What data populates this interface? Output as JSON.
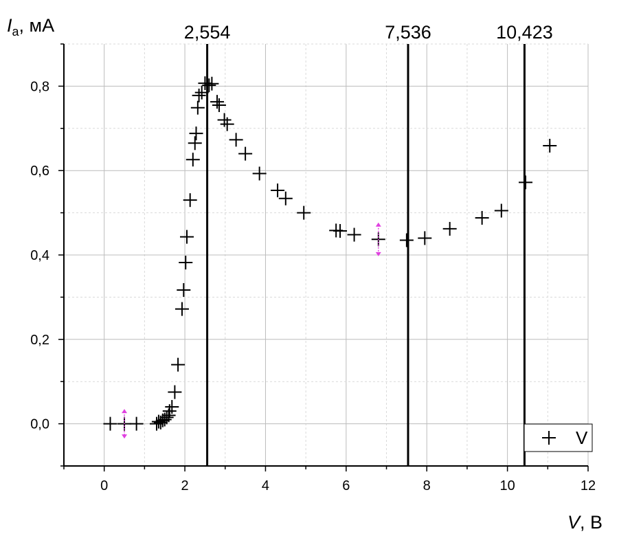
{
  "chart_data": {
    "type": "scatter",
    "xlabel": {
      "main": "V",
      "rest": ", В"
    },
    "ylabel": {
      "main": "I",
      "sub": "a",
      "rest": ", мА"
    },
    "xlim": [
      -1,
      12
    ],
    "ylim": [
      -0.1,
      0.9
    ],
    "x_ticks": [
      "0",
      "2",
      "4",
      "6",
      "8",
      "10",
      "12"
    ],
    "y_ticks": [
      "0,0",
      "0,2",
      "0,4",
      "0,6",
      "0,8"
    ],
    "grid": true,
    "legend_position": "bottom-right",
    "vertical_lines": [
      {
        "x": 2.554,
        "label": "2,554"
      },
      {
        "x": 7.536,
        "label": "7,536"
      },
      {
        "x": 10.423,
        "label": "10,423"
      }
    ],
    "series": [
      {
        "name": "V",
        "marker": "plus",
        "color": "#000000",
        "points": [
          [
            0.15,
            0.0
          ],
          [
            0.5,
            0.0
          ],
          [
            0.8,
            0.0
          ],
          [
            1.3,
            0.0
          ],
          [
            1.35,
            0.005
          ],
          [
            1.4,
            0.003
          ],
          [
            1.45,
            0.008
          ],
          [
            1.5,
            0.01
          ],
          [
            1.55,
            0.015
          ],
          [
            1.6,
            0.02
          ],
          [
            1.62,
            0.03
          ],
          [
            1.68,
            0.04
          ],
          [
            1.75,
            0.075
          ],
          [
            1.83,
            0.14
          ],
          [
            1.93,
            0.272
          ],
          [
            1.97,
            0.317
          ],
          [
            2.02,
            0.382
          ],
          [
            2.05,
            0.443
          ],
          [
            2.13,
            0.53
          ],
          [
            2.2,
            0.626
          ],
          [
            2.25,
            0.665
          ],
          [
            2.28,
            0.688
          ],
          [
            2.32,
            0.749
          ],
          [
            2.35,
            0.778
          ],
          [
            2.42,
            0.785
          ],
          [
            2.5,
            0.807
          ],
          [
            2.6,
            0.802
          ],
          [
            2.67,
            0.806
          ],
          [
            2.8,
            0.763
          ],
          [
            2.85,
            0.755
          ],
          [
            2.98,
            0.72
          ],
          [
            3.05,
            0.71
          ],
          [
            3.27,
            0.673
          ],
          [
            3.5,
            0.64
          ],
          [
            3.85,
            0.593
          ],
          [
            4.3,
            0.553
          ],
          [
            4.5,
            0.534
          ],
          [
            4.95,
            0.5
          ],
          [
            5.75,
            0.458
          ],
          [
            5.85,
            0.457
          ],
          [
            6.2,
            0.448
          ],
          [
            6.8,
            0.437
          ],
          [
            7.5,
            0.435
          ],
          [
            7.95,
            0.44
          ],
          [
            8.57,
            0.462
          ],
          [
            9.37,
            0.488
          ],
          [
            9.85,
            0.505
          ],
          [
            10.45,
            0.572
          ],
          [
            11.05,
            0.659
          ]
        ]
      }
    ],
    "error_bars": [
      {
        "x": 0.5,
        "y": 0.0,
        "err": 0.035,
        "color": "#e040e0"
      },
      {
        "x": 6.8,
        "y": 0.437,
        "err": 0.04,
        "color": "#e040e0"
      }
    ]
  }
}
